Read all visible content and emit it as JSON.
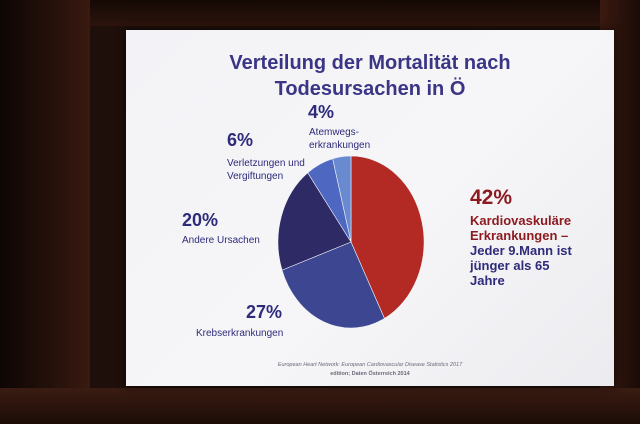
{
  "slide": {
    "title": "Verteilung der Mortalität nach\nTodesursachen in Ö",
    "source_line1": "European Heart Network: European Cardiovascular Disease Statistics 2017",
    "source_line2": "edition; Daten Österreich 2014"
  },
  "chart_data": {
    "type": "pie",
    "title": "Verteilung der Mortalität nach Todesursachen in Ö",
    "start_angle_deg": 0,
    "direction": "clockwise",
    "slices": [
      {
        "pct_label": "42%",
        "value": 42,
        "label": "Kardiovaskuläre\nErkrankungen –",
        "label_extra": "Jeder 9.Mann ist\njünger als 65\nJahre",
        "color": "#b32a24"
      },
      {
        "pct_label": "27%",
        "value": 27,
        "label": "Krebserkrankungen",
        "color": "#3c4691"
      },
      {
        "pct_label": "20%",
        "value": 20,
        "label": "Andere Ursachen",
        "color": "#2e2a66"
      },
      {
        "pct_label": "6%",
        "value": 6,
        "label": "Verletzungen und\nVergiftungen",
        "color": "#4e68c2"
      },
      {
        "pct_label": "4%",
        "value": 4,
        "label": "Atemwegs-\nerkrankungen",
        "color": "#6a8ad0"
      }
    ]
  }
}
